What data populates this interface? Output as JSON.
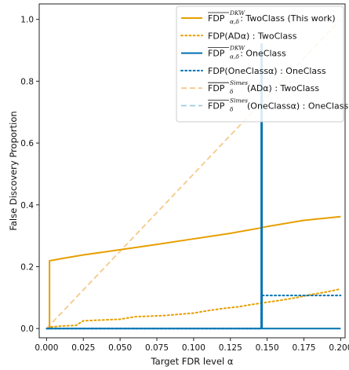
{
  "chart_data": {
    "type": "line",
    "title": "",
    "xlabel": "Target FDR level α",
    "ylabel": "False Discovery Proportion",
    "xlim": [
      -0.005,
      0.203
    ],
    "ylim": [
      -0.03,
      1.05
    ],
    "xticks": [
      "0.000",
      "0.025",
      "0.050",
      "0.075",
      "0.100",
      "0.125",
      "0.150",
      "0.175",
      "0.200"
    ],
    "xtick_values": [
      0,
      0.025,
      0.05,
      0.075,
      0.1,
      0.125,
      0.15,
      0.175,
      0.2
    ],
    "yticks": [
      "0.0",
      "0.2",
      "0.4",
      "0.6",
      "0.8",
      "1.0"
    ],
    "ytick_values": [
      0,
      0.2,
      0.4,
      0.6,
      0.8,
      1.0
    ],
    "grid": false,
    "legend_position": "top-right",
    "series": [
      {
        "name": "FDP^DKW_α,δ : TwoClass (This work)",
        "legend_parts": {
          "bar": "FDP",
          "sup": "DKW",
          "sub": "α,δ",
          "rest": " : TwoClass (This work)"
        },
        "color": "#E69F00",
        "style": "solid",
        "width": 2,
        "x": [
          0,
          0.002,
          0.002,
          0.01,
          0.025,
          0.05,
          0.075,
          0.1,
          0.125,
          0.145,
          0.15,
          0.175,
          0.2
        ],
        "y": [
          0,
          0,
          0.219,
          0.226,
          0.238,
          0.255,
          0.272,
          0.29,
          0.308,
          0.325,
          0.33,
          0.35,
          0.362
        ]
      },
      {
        "name": "FDP(AD_α) : TwoClass",
        "legend_parts": {
          "bar": "",
          "sup": "",
          "sub": "",
          "rest": "FDP(ADα) : TwoClass"
        },
        "color": "#E69F00",
        "style": "dotted",
        "width": 2,
        "x": [
          0.003,
          0.01,
          0.02,
          0.025,
          0.04,
          0.05,
          0.06,
          0.07,
          0.08,
          0.1,
          0.11,
          0.12,
          0.13,
          0.14,
          0.15,
          0.16,
          0.17,
          0.18,
          0.19,
          0.2
        ],
        "y": [
          0.005,
          0.008,
          0.01,
          0.025,
          0.028,
          0.03,
          0.038,
          0.04,
          0.042,
          0.05,
          0.058,
          0.065,
          0.07,
          0.078,
          0.085,
          0.092,
          0.1,
          0.11,
          0.118,
          0.128
        ]
      },
      {
        "name": "FDP^DKW_α,δ : OneClass",
        "legend_parts": {
          "bar": "FDP",
          "sup": "DKW",
          "sub": "α,δ",
          "rest": " : OneClass"
        },
        "color": "#0072B2",
        "style": "solid",
        "width": 2,
        "x": [
          0,
          0.146,
          0.146,
          0.1465,
          0.1465,
          0.2
        ],
        "y": [
          0,
          0,
          0.92,
          0.92,
          0,
          0
        ]
      },
      {
        "name": "FDP(OneClass_α) : OneClass",
        "legend_parts": {
          "bar": "",
          "sup": "",
          "sub": "",
          "rest": "FDP(OneClassα) : OneClass"
        },
        "color": "#0072B2",
        "style": "dotted",
        "width": 2,
        "x": [
          0,
          0.146,
          0.146,
          0.15,
          0.2
        ],
        "y": [
          0,
          0,
          0.107,
          0.107,
          0.107
        ]
      },
      {
        "name": "FDP^Simes_δ(AD_α) : TwoClass",
        "legend_parts": {
          "bar": "FDP",
          "sup": "Simes",
          "sub": "δ",
          "rest": "(ADα) : TwoClass"
        },
        "color": "#F5C98A",
        "style": "dashed",
        "width": 1.8,
        "x": [
          0,
          0.2
        ],
        "y": [
          0,
          1.0
        ]
      },
      {
        "name": "FDP^Simes_δ(OneClass_α) : OneClass",
        "legend_parts": {
          "bar": "FDP",
          "sup": "Simes",
          "sub": "δ",
          "rest": "(OneClassα) : OneClass"
        },
        "color": "#9ECAE1",
        "style": "dashed",
        "width": 1.8,
        "x": [
          0,
          0.146
        ],
        "y": [
          0,
          0
        ]
      }
    ]
  }
}
